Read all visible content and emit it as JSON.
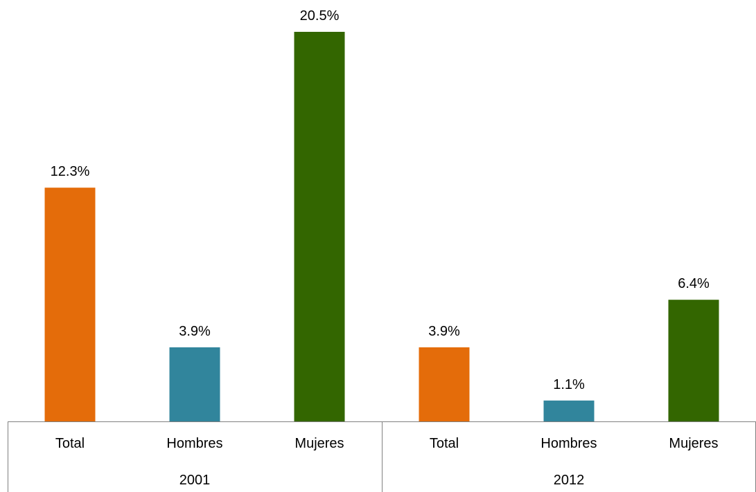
{
  "chart_data": {
    "type": "bar",
    "title": "",
    "xlabel": "",
    "ylabel": "",
    "ylim": [
      0,
      20.5
    ],
    "grid": false,
    "legend": "none",
    "groups": [
      {
        "label": "2001",
        "bars": [
          {
            "category": "Total",
            "value": 12.3,
            "label": "12.3%",
            "color": "#E46C0A"
          },
          {
            "category": "Hombres",
            "value": 3.9,
            "label": "3.9%",
            "color": "#31859C"
          },
          {
            "category": "Mujeres",
            "value": 20.5,
            "label": "20.5%",
            "color": "#336600"
          }
        ]
      },
      {
        "label": "2012",
        "bars": [
          {
            "category": "Total",
            "value": 3.9,
            "label": "3.9%",
            "color": "#E46C0A"
          },
          {
            "category": "Hombres",
            "value": 1.1,
            "label": "1.1%",
            "color": "#31859C"
          },
          {
            "category": "Mujeres",
            "value": 6.4,
            "label": "6.4%",
            "color": "#336600"
          }
        ]
      }
    ]
  }
}
